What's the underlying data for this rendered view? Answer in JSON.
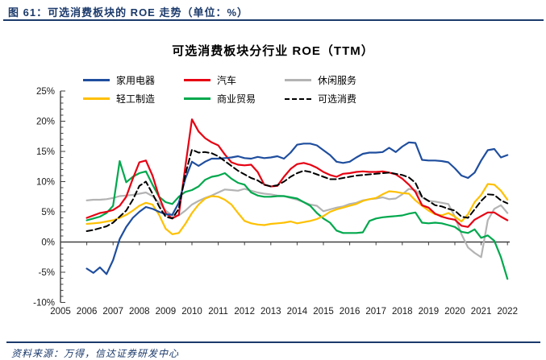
{
  "figure": {
    "caption": "图 61：可选消费板块的 ROE 走势（单位：%）",
    "source": "资料来源：万得，信达证券研发中心"
  },
  "chart_data": {
    "type": "line",
    "title": "可选消费板块分行业 ROE（TTM）",
    "xlabel": "",
    "ylabel": "",
    "ylim": [
      -10,
      25
    ],
    "y_tick_labels": [
      "25%",
      "20%",
      "15%",
      "10%",
      "5%",
      "0%",
      "-5%",
      "-10%"
    ],
    "y_tick_values": [
      25,
      20,
      15,
      10,
      5,
      0,
      -5,
      -10
    ],
    "x_tick_labels": [
      "2005",
      "2006",
      "2007",
      "2008",
      "2009",
      "2010",
      "2011",
      "2012",
      "2013",
      "2014",
      "2015",
      "2016",
      "2017",
      "2018",
      "2019",
      "2020",
      "2021",
      "2022"
    ],
    "x_start": 2006.0,
    "x_step": 0.25,
    "grid": false,
    "legend_position": "top",
    "axis_color": "#404040",
    "series": [
      {
        "name": "家用电器",
        "color": "#1F4E9E",
        "style": "solid",
        "values": [
          -4.4,
          -5.1,
          -4.2,
          -5.3,
          -3.0,
          0.5,
          2.5,
          4.0,
          5.0,
          5.8,
          5.5,
          5.0,
          4.6,
          4.5,
          6.5,
          10.5,
          13.3,
          12.6,
          13.3,
          13.8,
          13.8,
          13.9,
          14.0,
          14.2,
          13.9,
          13.8,
          14.1,
          13.9,
          14.0,
          14.2,
          13.8,
          14.8,
          16.1,
          16.3,
          16.3,
          16.0,
          15.2,
          14.4,
          13.3,
          13.1,
          13.3,
          14.0,
          14.6,
          14.8,
          14.8,
          14.9,
          15.6,
          14.9,
          15.8,
          16.5,
          16.4,
          13.6,
          13.5,
          13.5,
          13.4,
          13.2,
          12.2,
          11.0,
          10.6,
          11.5,
          13.5,
          15.2,
          15.4,
          14.0,
          14.4
        ]
      },
      {
        "name": "汽车",
        "color": "#E60012",
        "style": "solid",
        "values": [
          4.0,
          4.4,
          4.8,
          5.0,
          5.3,
          6.0,
          7.5,
          10.5,
          13.2,
          13.5,
          11.0,
          7.5,
          4.8,
          3.9,
          4.5,
          12.5,
          20.3,
          18.3,
          17.2,
          16.5,
          16.0,
          14.5,
          13.2,
          12.8,
          12.7,
          12.8,
          11.6,
          9.5,
          9.2,
          9.3,
          10.8,
          12.1,
          12.9,
          13.1,
          12.8,
          12.3,
          11.6,
          11.1,
          10.8,
          11.3,
          11.4,
          11.6,
          11.7,
          11.6,
          11.6,
          11.7,
          11.5,
          11.2,
          10.5,
          9.5,
          8.3,
          6.1,
          5.7,
          4.7,
          4.2,
          3.9,
          3.7,
          2.7,
          2.5,
          3.7,
          4.3,
          4.9,
          4.9,
          4.2,
          3.6
        ]
      },
      {
        "name": "休闲服务",
        "color": "#B3B3B3",
        "style": "solid",
        "values": [
          6.9,
          7.0,
          7.0,
          7.1,
          7.3,
          7.6,
          7.7,
          7.8,
          8.0,
          8.2,
          7.6,
          6.5,
          5.2,
          4.4,
          4.4,
          5.2,
          6.2,
          6.8,
          7.3,
          7.7,
          8.2,
          8.7,
          8.6,
          8.5,
          8.8,
          8.5,
          8.2,
          8.0,
          7.9,
          7.7,
          7.6,
          7.3,
          7.0,
          6.6,
          6.2,
          6.0,
          5.1,
          5.4,
          5.7,
          5.9,
          6.3,
          6.5,
          6.9,
          7.1,
          7.2,
          7.4,
          7.1,
          7.2,
          7.9,
          8.8,
          8.6,
          7.4,
          6.8,
          6.7,
          6.5,
          6.3,
          4.2,
          1.3,
          -0.9,
          -1.8,
          -2.5,
          3.6,
          5.5,
          6.1,
          4.8
        ]
      },
      {
        "name": "轻工制造",
        "color": "#FFC000",
        "style": "solid",
        "values": [
          3.0,
          3.1,
          3.2,
          3.4,
          3.6,
          4.0,
          4.5,
          5.2,
          6.0,
          6.5,
          6.2,
          4.5,
          2.2,
          1.3,
          1.5,
          3.0,
          4.8,
          6.2,
          7.2,
          7.6,
          7.5,
          7.0,
          6.2,
          4.8,
          3.5,
          3.1,
          2.9,
          2.8,
          3.0,
          3.1,
          3.2,
          3.4,
          3.1,
          3.3,
          3.5,
          3.8,
          4.3,
          5.0,
          5.4,
          5.7,
          6.0,
          6.3,
          6.8,
          7.1,
          7.3,
          7.9,
          8.4,
          8.3,
          8.1,
          8.0,
          6.9,
          6.0,
          5.2,
          4.6,
          4.4,
          4.8,
          4.2,
          3.4,
          4.6,
          6.6,
          7.8,
          9.6,
          9.5,
          8.5,
          7.0
        ]
      },
      {
        "name": "商业贸易",
        "color": "#00A84D",
        "style": "solid",
        "values": [
          3.6,
          3.9,
          4.2,
          4.8,
          6.0,
          13.4,
          9.9,
          10.8,
          11.4,
          11.7,
          9.5,
          7.5,
          6.6,
          6.3,
          7.5,
          8.3,
          8.6,
          9.2,
          10.3,
          10.8,
          11.0,
          11.4,
          10.5,
          9.8,
          9.5,
          8.2,
          7.7,
          7.5,
          7.5,
          7.6,
          7.6,
          7.4,
          7.2,
          6.6,
          6.0,
          4.8,
          3.9,
          3.2,
          1.9,
          1.5,
          1.5,
          1.5,
          1.6,
          3.5,
          3.9,
          4.1,
          4.2,
          4.3,
          4.4,
          4.7,
          4.9,
          3.2,
          3.1,
          3.2,
          3.1,
          2.8,
          2.5,
          1.7,
          1.5,
          2.1,
          0.7,
          1.1,
          0.2,
          -2.5,
          -6.1
        ]
      },
      {
        "name": "可选消费",
        "color": "#000000",
        "style": "dashed",
        "values": [
          1.8,
          2.0,
          2.3,
          2.6,
          3.2,
          4.2,
          5.2,
          7.0,
          9.3,
          10.0,
          8.0,
          5.9,
          4.2,
          3.9,
          5.5,
          11.2,
          15.3,
          14.8,
          14.9,
          14.7,
          14.2,
          13.4,
          12.6,
          11.8,
          11.2,
          10.6,
          10.2,
          9.5,
          9.2,
          9.4,
          10.0,
          10.8,
          11.4,
          11.8,
          11.6,
          11.2,
          10.8,
          10.4,
          10.4,
          10.6,
          10.8,
          11.0,
          11.1,
          11.2,
          11.3,
          11.4,
          11.5,
          11.3,
          11.1,
          10.7,
          9.8,
          7.5,
          6.8,
          6.1,
          5.9,
          5.5,
          5.2,
          4.2,
          4.0,
          5.4,
          6.8,
          7.9,
          7.8,
          6.9,
          6.4
        ]
      }
    ]
  }
}
